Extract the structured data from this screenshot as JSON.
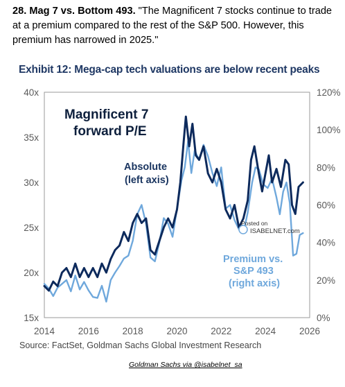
{
  "header": {
    "lead": "28. Mag 7 vs. Bottom 493.",
    "quote": " \"The Magnificent 7 stocks continue to trade at a premium compared to the rest of the S&P 500. However, this premium has narrowed in 2025.\""
  },
  "exhibit_title": "Exhibit 12: Mega-cap tech valuations are below recent peaks",
  "source": "Source: FactSet, Goldman Sachs Global Investment Research",
  "credit": "Goldman Sachs via @isabelnet_sa",
  "watermark": {
    "line1": "Posted on",
    "line2": "ISABELNET.com"
  },
  "colors": {
    "absolute": "#0d2a5c",
    "premium": "#6fa8dc",
    "frame": "#999999"
  },
  "chart_data": {
    "type": "line",
    "title": "Magnificent 7 forward P/E",
    "title_lines": [
      "Magnificent 7",
      "forward P/E"
    ],
    "xlim": [
      2014,
      2026
    ],
    "x_ticks": [
      "2014",
      "2016",
      "2018",
      "2020",
      "2022",
      "2024",
      "2026"
    ],
    "y_left": {
      "lim": [
        15,
        40
      ],
      "ticks": [
        "15x",
        "20x",
        "25x",
        "30x",
        "35x",
        "40x"
      ]
    },
    "y_right": {
      "lim": [
        0,
        120
      ],
      "ticks": [
        "0%",
        "20%",
        "40%",
        "60%",
        "80%",
        "100%",
        "120%"
      ]
    },
    "grid": false,
    "series": [
      {
        "name": "Absolute (left axis)",
        "label_lines": [
          "Absolute",
          "(left axis)"
        ],
        "axis": "left",
        "color": "#0d2a5c",
        "points": [
          [
            2014.0,
            18.5
          ],
          [
            2014.2,
            18.0
          ],
          [
            2014.4,
            19.0
          ],
          [
            2014.6,
            18.5
          ],
          [
            2014.8,
            20.0
          ],
          [
            2015.0,
            20.5
          ],
          [
            2015.2,
            19.5
          ],
          [
            2015.4,
            21.0
          ],
          [
            2015.6,
            19.5
          ],
          [
            2015.8,
            20.5
          ],
          [
            2016.0,
            19.5
          ],
          [
            2016.2,
            20.5
          ],
          [
            2016.4,
            19.5
          ],
          [
            2016.6,
            21.0
          ],
          [
            2016.8,
            20.0
          ],
          [
            2017.0,
            21.5
          ],
          [
            2017.2,
            22.5
          ],
          [
            2017.4,
            23.0
          ],
          [
            2017.6,
            24.5
          ],
          [
            2017.8,
            23.5
          ],
          [
            2018.0,
            25.5
          ],
          [
            2018.2,
            26.5
          ],
          [
            2018.4,
            25.5
          ],
          [
            2018.6,
            26.0
          ],
          [
            2018.8,
            22.5
          ],
          [
            2019.0,
            22.0
          ],
          [
            2019.2,
            23.5
          ],
          [
            2019.4,
            25.0
          ],
          [
            2019.6,
            26.0
          ],
          [
            2019.8,
            25.0
          ],
          [
            2020.0,
            27.0
          ],
          [
            2020.15,
            30.0
          ],
          [
            2020.3,
            34.5
          ],
          [
            2020.4,
            37.3
          ],
          [
            2020.55,
            34.0
          ],
          [
            2020.7,
            36.5
          ],
          [
            2020.85,
            33.0
          ],
          [
            2021.0,
            32.5
          ],
          [
            2021.2,
            34.0
          ],
          [
            2021.4,
            31.0
          ],
          [
            2021.6,
            30.0
          ],
          [
            2021.8,
            31.5
          ],
          [
            2022.0,
            30.0
          ],
          [
            2022.2,
            27.0
          ],
          [
            2022.4,
            26.0
          ],
          [
            2022.6,
            27.5
          ],
          [
            2022.8,
            25.0
          ],
          [
            2023.0,
            26.0
          ],
          [
            2023.2,
            28.0
          ],
          [
            2023.35,
            32.5
          ],
          [
            2023.5,
            34.0
          ],
          [
            2023.7,
            31.0
          ],
          [
            2023.85,
            29.0
          ],
          [
            2024.0,
            31.0
          ],
          [
            2024.15,
            33.0
          ],
          [
            2024.3,
            30.0
          ],
          [
            2024.5,
            31.5
          ],
          [
            2024.7,
            29.5
          ],
          [
            2024.9,
            32.5
          ],
          [
            2025.05,
            32.0
          ],
          [
            2025.2,
            27.5
          ],
          [
            2025.35,
            26.5
          ],
          [
            2025.5,
            29.5
          ],
          [
            2025.7,
            30.0
          ]
        ]
      },
      {
        "name": "Premium vs. S&P 493 (right axis)",
        "label_lines": [
          "Premium vs.",
          "S&P 493",
          "(right axis)"
        ],
        "axis": "right",
        "color": "#6fa8dc",
        "points": [
          [
            2014.0,
            18.0
          ],
          [
            2014.2,
            15.5
          ],
          [
            2014.4,
            11.5
          ],
          [
            2014.6,
            16.0
          ],
          [
            2014.8,
            18.0
          ],
          [
            2015.0,
            20.0
          ],
          [
            2015.2,
            14.0
          ],
          [
            2015.4,
            22.5
          ],
          [
            2015.6,
            15.0
          ],
          [
            2015.8,
            19.0
          ],
          [
            2016.0,
            14.5
          ],
          [
            2016.2,
            11.0
          ],
          [
            2016.4,
            10.5
          ],
          [
            2016.6,
            17.0
          ],
          [
            2016.8,
            8.5
          ],
          [
            2017.0,
            20.0
          ],
          [
            2017.2,
            24.0
          ],
          [
            2017.4,
            27.5
          ],
          [
            2017.6,
            31.5
          ],
          [
            2017.8,
            33.0
          ],
          [
            2018.0,
            41.0
          ],
          [
            2018.2,
            55.0
          ],
          [
            2018.4,
            60.0
          ],
          [
            2018.6,
            50.0
          ],
          [
            2018.8,
            32.0
          ],
          [
            2019.0,
            30.0
          ],
          [
            2019.2,
            40.0
          ],
          [
            2019.4,
            53.0
          ],
          [
            2019.6,
            50.0
          ],
          [
            2019.8,
            43.0
          ],
          [
            2020.0,
            58.0
          ],
          [
            2020.2,
            73.0
          ],
          [
            2020.35,
            80.0
          ],
          [
            2020.5,
            94.0
          ],
          [
            2020.65,
            77.0
          ],
          [
            2020.8,
            89.0
          ],
          [
            2021.0,
            84.0
          ],
          [
            2021.2,
            92.0
          ],
          [
            2021.4,
            86.0
          ],
          [
            2021.6,
            77.0
          ],
          [
            2021.8,
            70.0
          ],
          [
            2022.0,
            80.0
          ],
          [
            2022.2,
            58.0
          ],
          [
            2022.4,
            60.0
          ],
          [
            2022.6,
            52.0
          ],
          [
            2022.8,
            47.0
          ],
          [
            2023.0,
            45.0
          ],
          [
            2023.2,
            56.0
          ],
          [
            2023.4,
            72.0
          ],
          [
            2023.55,
            80.0
          ],
          [
            2023.7,
            79.0
          ],
          [
            2023.9,
            71.0
          ],
          [
            2024.1,
            69.0
          ],
          [
            2024.3,
            74.0
          ],
          [
            2024.5,
            64.0
          ],
          [
            2024.65,
            55.0
          ],
          [
            2024.8,
            67.0
          ],
          [
            2024.95,
            72.0
          ],
          [
            2025.1,
            61.0
          ],
          [
            2025.25,
            33.0
          ],
          [
            2025.4,
            34.0
          ],
          [
            2025.55,
            44.0
          ],
          [
            2025.7,
            45.0
          ]
        ]
      }
    ]
  }
}
